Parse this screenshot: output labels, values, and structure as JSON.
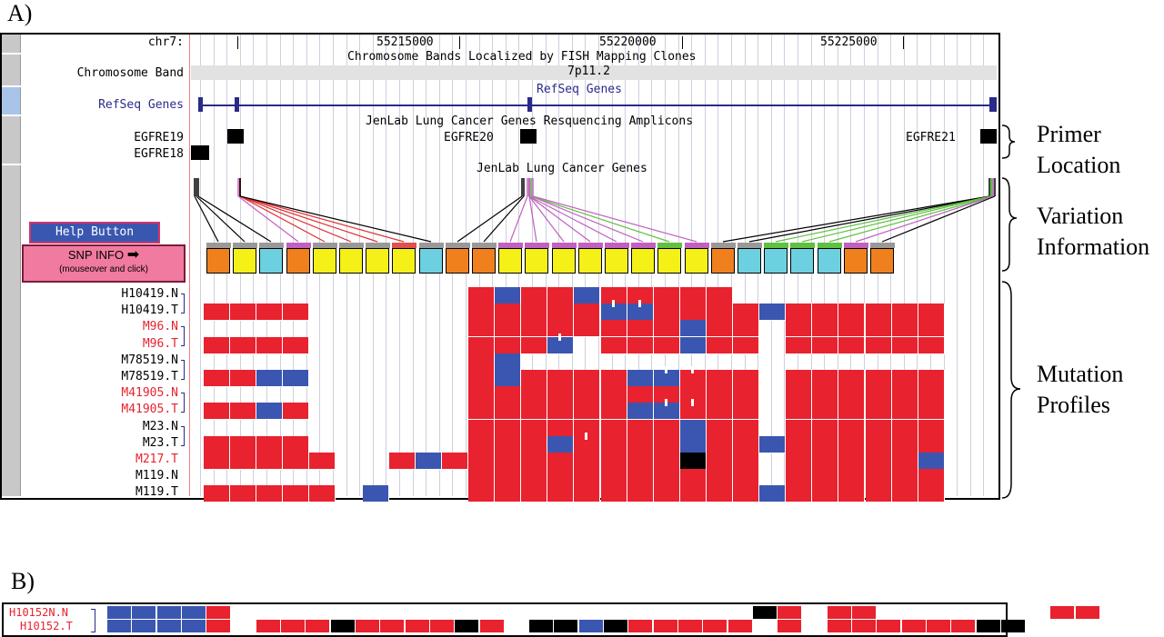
{
  "panels": {
    "a_label": "A)",
    "b_label": "B)"
  },
  "browser": {
    "chr_label": "chr7:",
    "coords": [
      "55215000",
      "55220000",
      "55225000"
    ],
    "band_track_title": "Chromosome Bands Localized by FISH Mapping Clones",
    "band_label": "Chromosome Band",
    "band_value": "7p11.2",
    "refseq_label": "RefSeq Genes",
    "refseq_title": "RefSeq Genes",
    "amplicon_title": "JenLab Lung Cancer Genes Resquencing Amplicons",
    "amplicons": [
      "EGFRE19",
      "EGFRE18",
      "EGFRE20",
      "EGFRE21"
    ],
    "genes_title": "JenLab Lung Cancer Genes",
    "help_button": "Help Button",
    "snp_button_line1": "SNP INFO",
    "snp_button_line2": "(mouseover and click)",
    "snp_arrow": "➡"
  },
  "colors": {
    "mutant": "#e8222e",
    "variant": "#3b56b0",
    "homozygous": "#000000",
    "snp_orange": "#f0801e",
    "snp_yellow": "#f5f018",
    "snp_cyan": "#6cd0e0"
  },
  "snp_boxes": [
    "o",
    "y",
    "c",
    "o",
    "y",
    "y",
    "y",
    "y",
    "c",
    "o",
    "o",
    "y",
    "y",
    "y",
    "y",
    "y",
    "y",
    "y",
    "y",
    "o",
    "c",
    "c",
    "c",
    "c",
    "o",
    "o"
  ],
  "samples": [
    {
      "name": "H10419.N",
      "color": "black"
    },
    {
      "name": "H10419.T",
      "color": "black"
    },
    {
      "name": "M96.N",
      "color": "red"
    },
    {
      "name": "M96.T",
      "color": "red"
    },
    {
      "name": "M78519.N",
      "color": "black"
    },
    {
      "name": "M78519.T",
      "color": "black"
    },
    {
      "name": "M41905.N",
      "color": "red"
    },
    {
      "name": "M41905.T",
      "color": "red"
    },
    {
      "name": "M23.N",
      "color": "black"
    },
    {
      "name": "M23.T",
      "color": "black"
    },
    {
      "name": "M217.T",
      "color": "red"
    },
    {
      "name": "M119.N",
      "color": "black"
    },
    {
      "name": "M119.T",
      "color": "black"
    }
  ],
  "annotations": {
    "primer": [
      "Primer",
      "Location"
    ],
    "variation": [
      "Variation",
      "Information"
    ],
    "mutation": [
      "Mutation",
      "Profiles"
    ]
  },
  "panel_b": {
    "samples": [
      {
        "name": "H10152N.N",
        "color": "red"
      },
      {
        "name": "H10152.T",
        "color": "red"
      }
    ]
  }
}
